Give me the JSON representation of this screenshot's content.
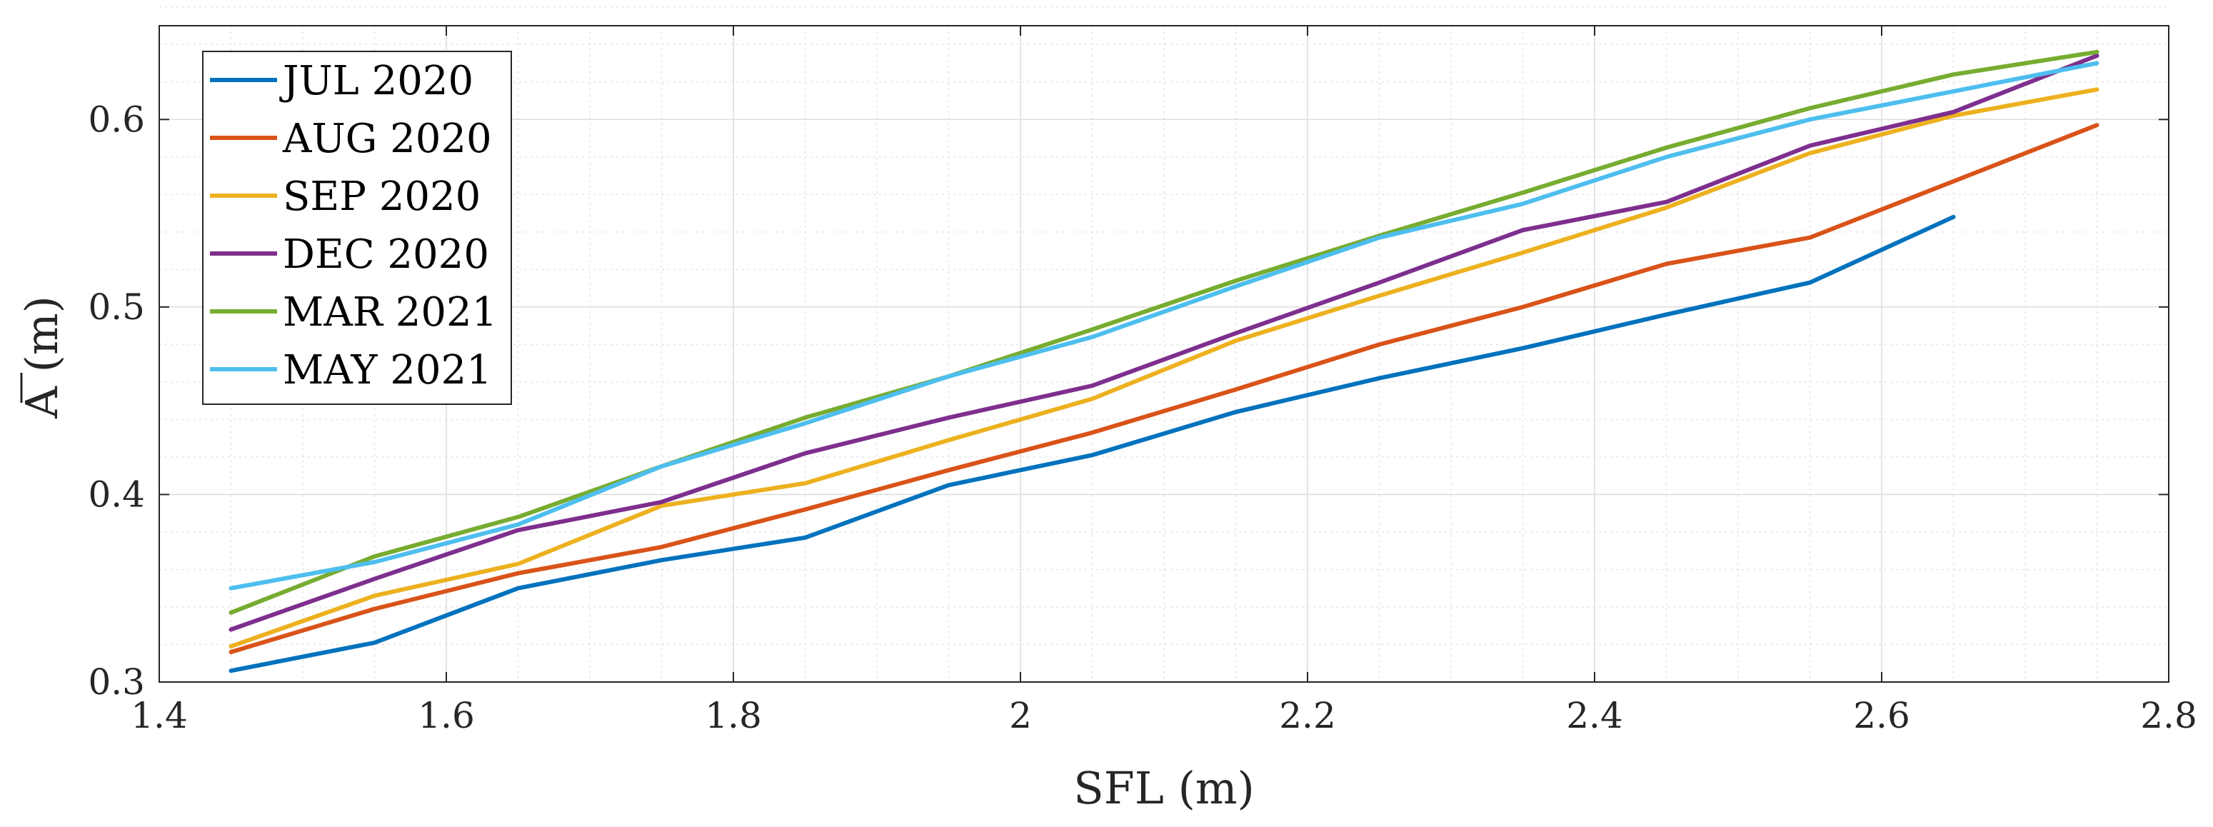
{
  "chart_data": {
    "type": "line",
    "title": "",
    "xlabel": "SFL (m)",
    "ylabel": "A (m)",
    "ylabel_overline": true,
    "xlim": [
      1.4,
      2.8
    ],
    "ylim": [
      0.3,
      0.65
    ],
    "xticks": [
      1.4,
      1.6,
      1.8,
      2.0,
      2.2,
      2.4,
      2.6,
      2.8
    ],
    "xtick_labels": [
      "1.4",
      "1.6",
      "1.8",
      "2",
      "2.2",
      "2.4",
      "2.6",
      "2.8"
    ],
    "yticks": [
      0.3,
      0.4,
      0.5,
      0.6
    ],
    "ytick_labels": [
      "0.3",
      "0.4",
      "0.5",
      "0.6"
    ],
    "grid": true,
    "minor_grid": true,
    "legend_position": "top-left",
    "series": [
      {
        "name": "JUL 2020",
        "color": "#0072BD",
        "x": [
          1.45,
          1.55,
          1.65,
          1.75,
          1.85,
          1.95,
          2.05,
          2.15,
          2.25,
          2.35,
          2.45,
          2.55,
          2.65
        ],
        "y": [
          0.306,
          0.321,
          0.35,
          0.365,
          0.377,
          0.405,
          0.421,
          0.444,
          0.462,
          0.478,
          0.496,
          0.513,
          0.548
        ]
      },
      {
        "name": "AUG 2020",
        "color": "#D95319",
        "x": [
          1.45,
          1.55,
          1.65,
          1.75,
          1.85,
          1.95,
          2.05,
          2.15,
          2.25,
          2.35,
          2.45,
          2.55,
          2.65,
          2.75
        ],
        "y": [
          0.316,
          0.339,
          0.358,
          0.372,
          0.392,
          0.413,
          0.433,
          0.456,
          0.48,
          0.5,
          0.523,
          0.537,
          0.567,
          0.597
        ]
      },
      {
        "name": "SEP 2020",
        "color": "#EDB120",
        "x": [
          1.45,
          1.55,
          1.65,
          1.75,
          1.85,
          1.95,
          2.05,
          2.15,
          2.25,
          2.35,
          2.45,
          2.55,
          2.65,
          2.75
        ],
        "y": [
          0.319,
          0.346,
          0.363,
          0.394,
          0.406,
          0.429,
          0.451,
          0.482,
          0.506,
          0.529,
          0.553,
          0.582,
          0.602,
          0.616
        ]
      },
      {
        "name": "DEC 2020",
        "color": "#7E2F8E",
        "x": [
          1.45,
          1.55,
          1.65,
          1.75,
          1.85,
          1.95,
          2.05,
          2.15,
          2.25,
          2.35,
          2.45,
          2.55,
          2.65,
          2.75
        ],
        "y": [
          0.328,
          0.355,
          0.381,
          0.396,
          0.422,
          0.441,
          0.458,
          0.486,
          0.513,
          0.541,
          0.556,
          0.586,
          0.604,
          0.634
        ]
      },
      {
        "name": "MAR 2021",
        "color": "#77AC30",
        "x": [
          1.45,
          1.55,
          1.65,
          1.75,
          1.85,
          1.95,
          2.05,
          2.15,
          2.25,
          2.35,
          2.45,
          2.55,
          2.65,
          2.75
        ],
        "y": [
          0.337,
          0.367,
          0.388,
          0.415,
          0.441,
          0.463,
          0.488,
          0.514,
          0.538,
          0.561,
          0.585,
          0.606,
          0.624,
          0.636
        ]
      },
      {
        "name": "MAY 2021",
        "color": "#4DBEEE",
        "x": [
          1.45,
          1.55,
          1.65,
          1.75,
          1.85,
          1.95,
          2.05,
          2.15,
          2.25,
          2.35,
          2.45,
          2.55,
          2.65,
          2.75
        ],
        "y": [
          0.35,
          0.364,
          0.384,
          0.415,
          0.438,
          0.463,
          0.484,
          0.511,
          0.537,
          0.555,
          0.58,
          0.6,
          0.615,
          0.63
        ]
      }
    ]
  }
}
